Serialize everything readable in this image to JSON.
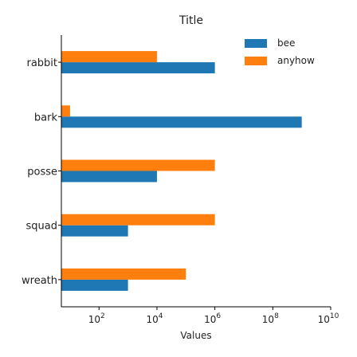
{
  "chart_data": {
    "type": "bar",
    "orientation": "horizontal",
    "title": "Title",
    "xlabel": "Values",
    "ylabel": "",
    "x_scale": "log",
    "xlim": [
      5,
      10000000000
    ],
    "x_ticks": [
      {
        "value": 100,
        "base": "10",
        "exp": "2"
      },
      {
        "value": 10000,
        "base": "10",
        "exp": "4"
      },
      {
        "value": 1000000,
        "base": "10",
        "exp": "6"
      },
      {
        "value": 100000000,
        "base": "10",
        "exp": "8"
      },
      {
        "value": 10000000000,
        "base": "10",
        "exp": "10"
      }
    ],
    "categories": [
      "rabbit",
      "bark",
      "posse",
      "squad",
      "wreath"
    ],
    "series": [
      {
        "name": "bee",
        "color": "#1f77b4",
        "values": [
          1000000,
          1000000000,
          10000,
          1000,
          1000
        ]
      },
      {
        "name": "anyhow",
        "color": "#ff7f0e",
        "values": [
          10000,
          10,
          1000000,
          1000000,
          100000
        ]
      }
    ],
    "legend": {
      "position": "top-right"
    },
    "grid": false
  }
}
